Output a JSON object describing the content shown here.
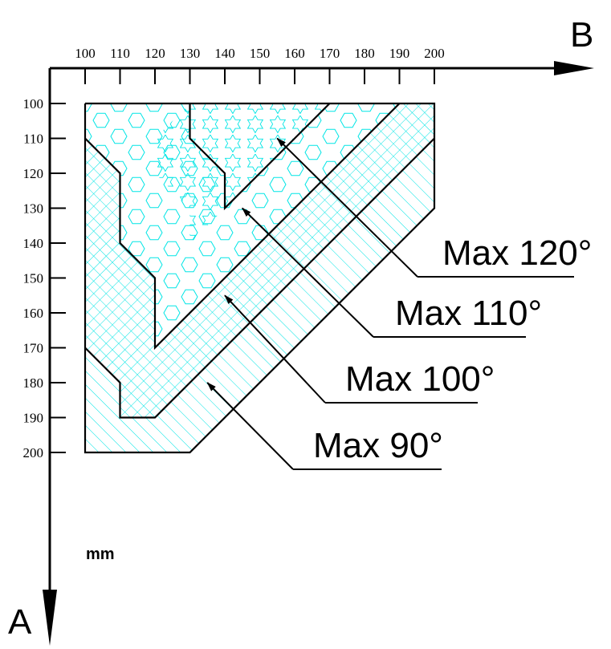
{
  "axes": {
    "horizontal": {
      "name": "B",
      "ticks": [
        "100",
        "110",
        "120",
        "130",
        "140",
        "150",
        "160",
        "170",
        "180",
        "190",
        "200"
      ]
    },
    "vertical": {
      "name": "A",
      "ticks": [
        "100",
        "110",
        "120",
        "130",
        "140",
        "150",
        "160",
        "170",
        "180",
        "190",
        "200"
      ]
    }
  },
  "unit": "mm",
  "colors": {
    "hatch": "#00e5e5",
    "outline": "#000000"
  },
  "zones": [
    {
      "label": "Max 120°",
      "pattern": "hexagons-and-stars",
      "polygon": [
        [
          130,
          100
        ],
        [
          170,
          100
        ],
        [
          130,
          140
        ],
        [
          130,
          130
        ],
        [
          120,
          120
        ],
        [
          120,
          110
        ],
        [
          130,
          100
        ]
      ]
    },
    {
      "label": "Max 110°",
      "pattern": "hexagons",
      "polygon": [
        [
          100,
          100
        ],
        [
          130,
          100
        ],
        [
          130,
          110
        ],
        [
          140,
          120
        ],
        [
          140,
          130
        ],
        [
          170,
          100
        ],
        [
          190,
          100
        ],
        [
          120,
          170
        ],
        [
          120,
          150
        ],
        [
          110,
          140
        ],
        [
          110,
          120
        ],
        [
          100,
          110
        ]
      ]
    },
    {
      "label": "Max 100°",
      "pattern": "crosshatch",
      "polygon": [
        [
          190,
          100
        ],
        [
          200,
          100
        ],
        [
          200,
          110
        ],
        [
          120,
          190
        ],
        [
          110,
          190
        ],
        [
          110,
          180
        ],
        [
          100,
          170
        ],
        [
          100,
          110
        ],
        [
          110,
          120
        ],
        [
          110,
          140
        ],
        [
          120,
          150
        ],
        [
          120,
          170
        ]
      ]
    },
    {
      "label": "Max 90°",
      "pattern": "diagonal-lines",
      "polygon": [
        [
          200,
          110
        ],
        [
          200,
          130
        ],
        [
          130,
          200
        ],
        [
          100,
          200
        ],
        [
          100,
          170
        ],
        [
          110,
          180
        ],
        [
          110,
          190
        ],
        [
          120,
          190
        ]
      ]
    }
  ]
}
